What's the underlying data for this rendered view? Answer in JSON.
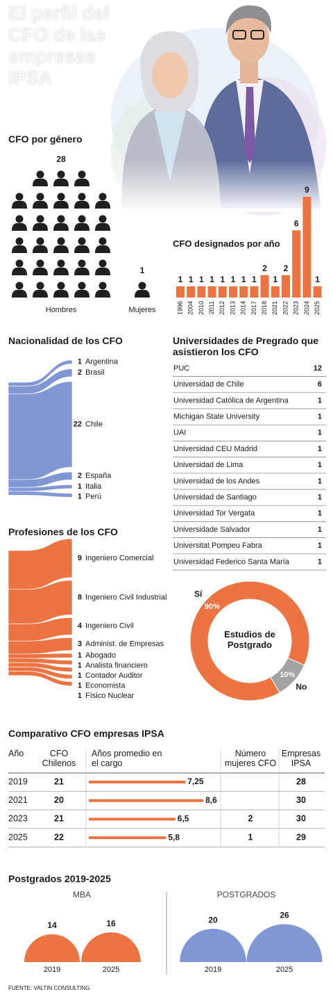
{
  "title": "El perfil del CFO de las empresas IPSA",
  "source": "FUENTE: VALTIN CONSULTING",
  "chart_data": [
    {
      "type": "pictograph",
      "title": "CFO por género",
      "categories": [
        "Hombres",
        "Mujeres"
      ],
      "values": [
        28,
        1
      ],
      "color": "#1f1f1f"
    },
    {
      "type": "bar",
      "title": "CFO designados por año",
      "categories": [
        "1996",
        "2004",
        "2010",
        "2011",
        "2012",
        "2013",
        "2014",
        "2017",
        "2018",
        "2021",
        "2022",
        "2023",
        "2024",
        "2025"
      ],
      "values": [
        1,
        1,
        1,
        1,
        1,
        1,
        1,
        1,
        2,
        1,
        2,
        6,
        9,
        1
      ],
      "color": "#ec7342"
    },
    {
      "type": "sankey",
      "title": "Nacionalidad de los CFO",
      "categories": [
        "Argentina",
        "Brasil",
        "Chile",
        "España",
        "Italia",
        "Perú"
      ],
      "values": [
        1,
        2,
        22,
        2,
        1,
        1
      ],
      "color": "#8097d3"
    },
    {
      "type": "sankey",
      "title": "Profesiones de los CFO",
      "categories": [
        "Ingeniero Comercial",
        "Ingeniero Civil Industrial",
        "Ingeniero Civil",
        "Administ. de Empresas",
        "Abogado",
        "Analista financiero",
        "Contador Auditor",
        "Economista",
        "Físico Nuclear"
      ],
      "values": [
        9,
        8,
        4,
        3,
        1,
        1,
        1,
        1,
        1
      ],
      "color": "#ec7342"
    },
    {
      "type": "table",
      "title": "Universidades de Pregrado que asistieron los CFO",
      "categories": [
        "PUC",
        "Universidad de Chile",
        "Universidad Católica de Argentina",
        "Michigan State University",
        "UAI",
        "Universidad CEU Madrid",
        "Universidad de Lima",
        "Universidad de los Andes",
        "Universidad de Santiago",
        "Universidad Tor Vergata",
        "Universidade Salvador",
        "Universitat Pompeu Fabra",
        "Universidad Federico Santa María"
      ],
      "values": [
        12,
        6,
        1,
        1,
        1,
        1,
        1,
        1,
        1,
        1,
        1,
        1,
        1
      ]
    },
    {
      "type": "donut",
      "title": "Estudios de Postgrado",
      "categories": [
        "Sí",
        "No"
      ],
      "values": [
        90,
        10
      ],
      "value_labels": [
        "90%",
        "10%"
      ],
      "colors": [
        "#ec7342",
        "#a3a3a3"
      ]
    },
    {
      "type": "table-bar",
      "title": "Comparativo CFO empresas IPSA",
      "category_label": "Año",
      "categories": [
        "2019",
        "2021",
        "2023",
        "2025"
      ],
      "series": [
        {
          "name": "CFO Chilenos",
          "values": [
            21,
            20,
            21,
            22
          ]
        },
        {
          "name": "Años promedio en el cargo",
          "values": [
            7.25,
            8.6,
            6.5,
            5.8
          ],
          "value_labels": [
            "7,25",
            "8,6",
            "6,5",
            "5,8"
          ],
          "color": "#ec7342"
        },
        {
          "name": "Número mujeres CFO",
          "values": [
            null,
            null,
            2,
            1
          ]
        },
        {
          "name": "Empresas IPSA",
          "values": [
            28,
            30,
            30,
            29
          ]
        }
      ]
    },
    {
      "type": "semicircle",
      "title": "Postgrados 2019-2025",
      "panels": [
        {
          "name": "MBA",
          "categories": [
            "2019",
            "2025"
          ],
          "values": [
            14,
            16
          ],
          "color": "#ec7342"
        },
        {
          "name": "POSTGRADOS",
          "categories": [
            "2019",
            "2025"
          ],
          "values": [
            20,
            26
          ],
          "color": "#8097d3"
        }
      ]
    }
  ]
}
